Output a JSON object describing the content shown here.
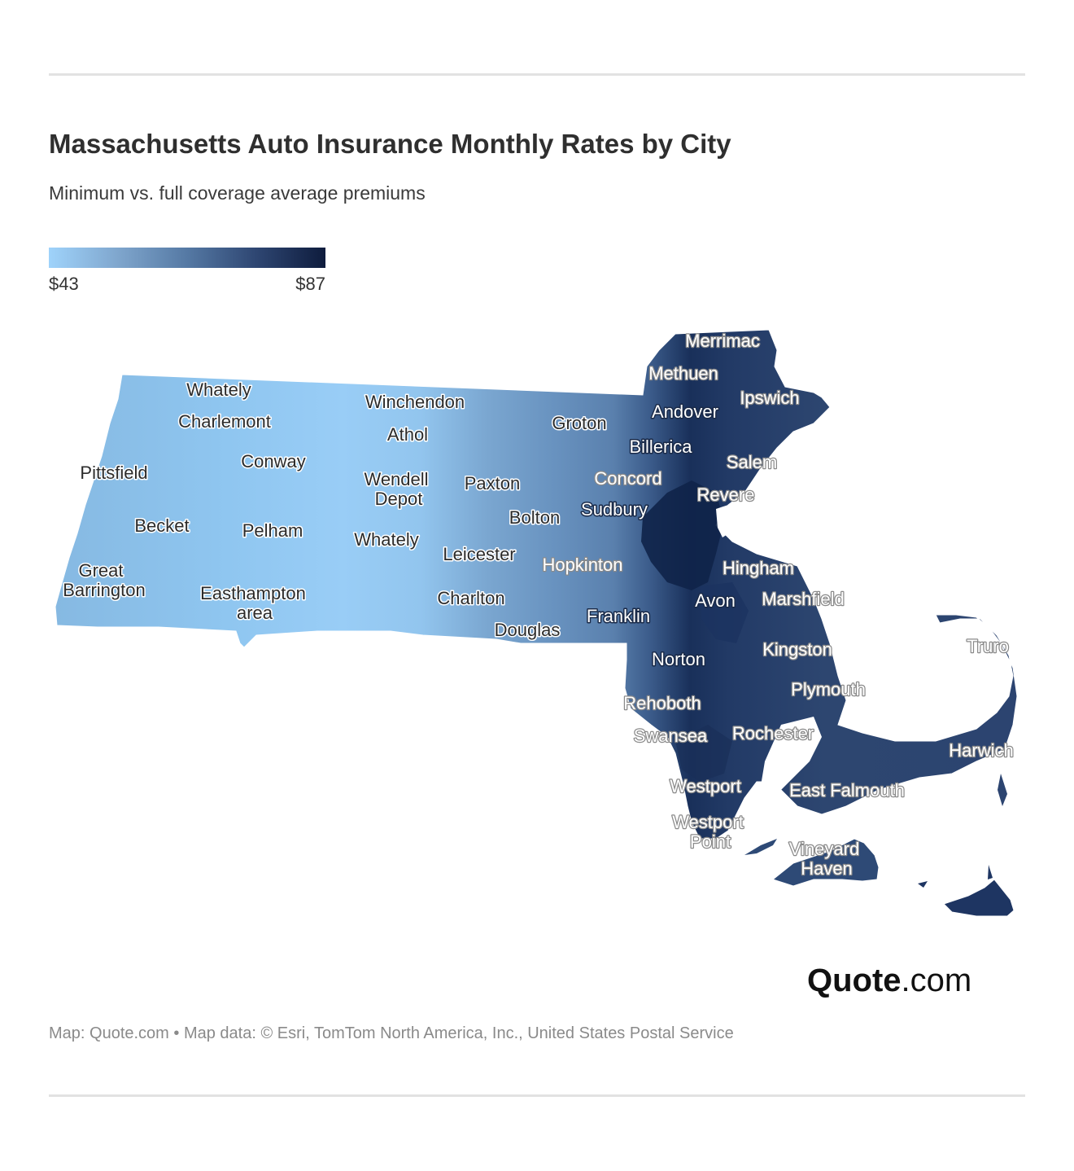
{
  "header": {
    "title": "Massachusetts Auto Insurance Monthly Rates by City",
    "subtitle": "Minimum vs. full coverage average premiums"
  },
  "legend": {
    "min": "$43",
    "max": "$87",
    "colors": [
      "#9fd3fb",
      "#7fa6cd",
      "#5579a4",
      "#2e4672",
      "#0e1c3d"
    ]
  },
  "map": {
    "region": "Massachusetts",
    "cities": [
      {
        "name": "Merrimac",
        "style": "ghost"
      },
      {
        "name": "Methuen",
        "style": "ghost"
      },
      {
        "name": "Ipswich",
        "style": "ghost"
      },
      {
        "name": "Andover",
        "style": "dark"
      },
      {
        "name": "Whately",
        "style": "light"
      },
      {
        "name": "Winchendon",
        "style": "light"
      },
      {
        "name": "Charlemont",
        "style": "light"
      },
      {
        "name": "Groton",
        "style": "light"
      },
      {
        "name": "Athol",
        "style": "light"
      },
      {
        "name": "Billerica",
        "style": "dark"
      },
      {
        "name": "Conway",
        "style": "light"
      },
      {
        "name": "Salem",
        "style": "ghost"
      },
      {
        "name": "Pittsfield",
        "style": "light"
      },
      {
        "name": "Wendell",
        "style": "light"
      },
      {
        "name": "Depot",
        "style": "light"
      },
      {
        "name": "Paxton",
        "style": "light"
      },
      {
        "name": "Concord",
        "style": "ghost"
      },
      {
        "name": "Revere",
        "style": "ghost"
      },
      {
        "name": "Sudbury",
        "style": "dark"
      },
      {
        "name": "Bolton",
        "style": "light"
      },
      {
        "name": "Becket",
        "style": "light"
      },
      {
        "name": "Pelham",
        "style": "light"
      },
      {
        "name": "Whately",
        "style": "light"
      },
      {
        "name": "Leicester",
        "style": "light"
      },
      {
        "name": "Hopkinton",
        "style": "ghost"
      },
      {
        "name": "Hingham",
        "style": "ghost"
      },
      {
        "name": "Great",
        "style": "light"
      },
      {
        "name": "Barrington",
        "style": "light"
      },
      {
        "name": "Easthampton",
        "style": "light"
      },
      {
        "name": "area",
        "style": "light"
      },
      {
        "name": "Charlton",
        "style": "light"
      },
      {
        "name": "Avon",
        "style": "dark"
      },
      {
        "name": "Marshfield",
        "style": "ghost"
      },
      {
        "name": "Franklin",
        "style": "dark"
      },
      {
        "name": "Douglas",
        "style": "light"
      },
      {
        "name": "Truro",
        "style": "ghost"
      },
      {
        "name": "Kingston",
        "style": "ghost"
      },
      {
        "name": "Norton",
        "style": "dark"
      },
      {
        "name": "Plymouth",
        "style": "ghost"
      },
      {
        "name": "Rehoboth",
        "style": "ghost"
      },
      {
        "name": "Swansea",
        "style": "ghost"
      },
      {
        "name": "Rochester",
        "style": "ghost"
      },
      {
        "name": "Harwich",
        "style": "ghost"
      },
      {
        "name": "Westport",
        "style": "ghost"
      },
      {
        "name": "East Falmouth",
        "style": "ghost"
      },
      {
        "name": "Westport",
        "style": "ghost"
      },
      {
        "name": "Point",
        "style": "ghost"
      },
      {
        "name": "Vineyard",
        "style": "ghost"
      },
      {
        "name": "Haven",
        "style": "ghost"
      }
    ]
  },
  "brand": {
    "name_bold": "Quote",
    "name_rest": ".com"
  },
  "footer": {
    "credit": "Map: Quote.com • Map data: © Esri, TomTom North America, Inc., United States Postal Service"
  }
}
